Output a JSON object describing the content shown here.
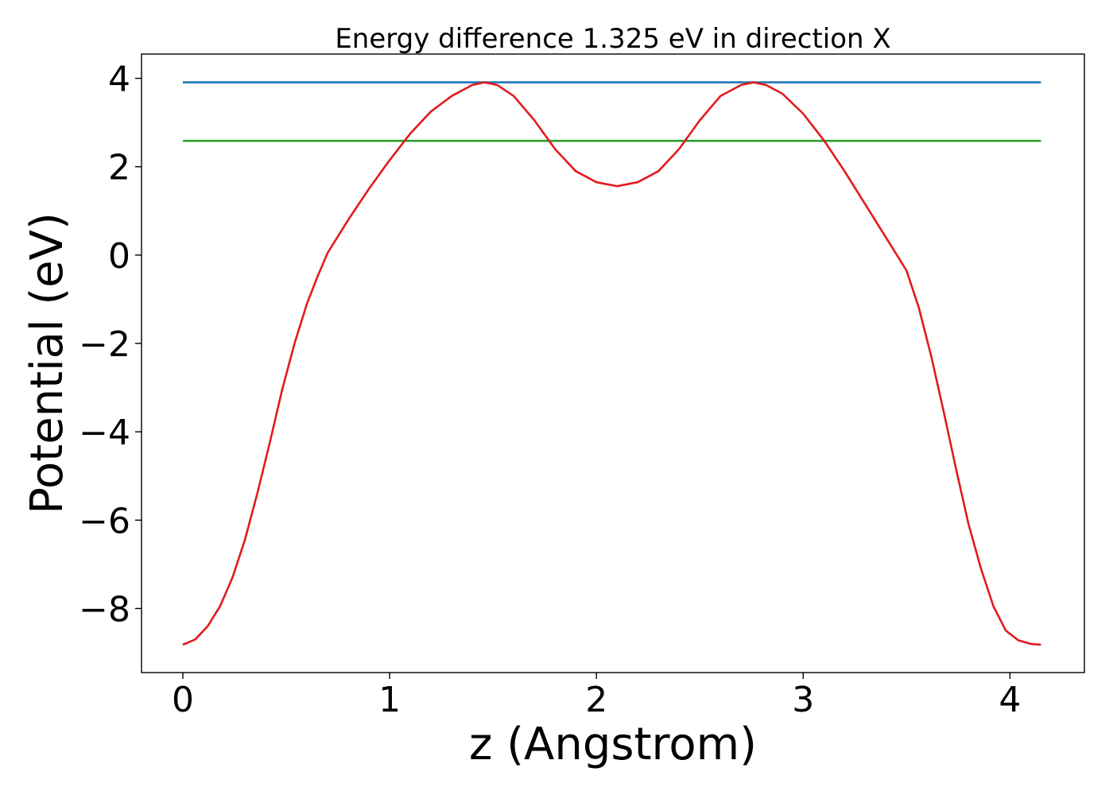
{
  "chart_data": {
    "type": "line",
    "title": "Energy difference 1.325 eV in direction X",
    "xlabel": "z (Angstrom)",
    "ylabel": "Potential (eV)",
    "xlim": [
      -0.2,
      4.36
    ],
    "ylim": [
      -9.45,
      4.55
    ],
    "xticks": [
      0,
      1,
      2,
      3,
      4
    ],
    "xtick_labels": [
      "0",
      "1",
      "2",
      "3",
      "4"
    ],
    "yticks": [
      -8,
      -6,
      -4,
      -2,
      0,
      2,
      4
    ],
    "ytick_labels": [
      "−8",
      "−6",
      "−4",
      "−2",
      "0",
      "2",
      "4"
    ],
    "grid": false,
    "legend": "none",
    "series": [
      {
        "color": "#1f77b4",
        "x": [
          0,
          4.15
        ],
        "y": [
          3.91,
          3.91
        ]
      },
      {
        "color": "#2ca02c",
        "x": [
          0,
          4.15
        ],
        "y": [
          2.585,
          2.585
        ]
      },
      {
        "color": "#e31a1c",
        "x": [
          0,
          0.06,
          0.12,
          0.18,
          0.24,
          0.3,
          0.36,
          0.42,
          0.48,
          0.54,
          0.6,
          0.65,
          0.7,
          0.8,
          0.9,
          1.0,
          1.1,
          1.2,
          1.3,
          1.4,
          1.46,
          1.52,
          1.6,
          1.7,
          1.8,
          1.9,
          2.0,
          2.1,
          2.2,
          2.3,
          2.4,
          2.5,
          2.6,
          2.7,
          2.76,
          2.82,
          2.9,
          3.0,
          3.1,
          3.2,
          3.3,
          3.4,
          3.5,
          3.56,
          3.62,
          3.68,
          3.74,
          3.8,
          3.86,
          3.92,
          3.98,
          4.04,
          4.1,
          4.15
        ],
        "y": [
          -8.82,
          -8.7,
          -8.4,
          -7.95,
          -7.3,
          -6.45,
          -5.4,
          -4.25,
          -3.05,
          -2.0,
          -1.1,
          -0.5,
          0.05,
          0.8,
          1.5,
          2.15,
          2.75,
          3.25,
          3.6,
          3.85,
          3.91,
          3.85,
          3.6,
          3.05,
          2.4,
          1.9,
          1.65,
          1.56,
          1.65,
          1.9,
          2.4,
          3.05,
          3.6,
          3.85,
          3.91,
          3.85,
          3.65,
          3.2,
          2.6,
          1.9,
          1.15,
          0.4,
          -0.35,
          -1.2,
          -2.3,
          -3.55,
          -4.85,
          -6.1,
          -7.1,
          -7.95,
          -8.5,
          -8.72,
          -8.8,
          -8.82
        ]
      }
    ]
  }
}
